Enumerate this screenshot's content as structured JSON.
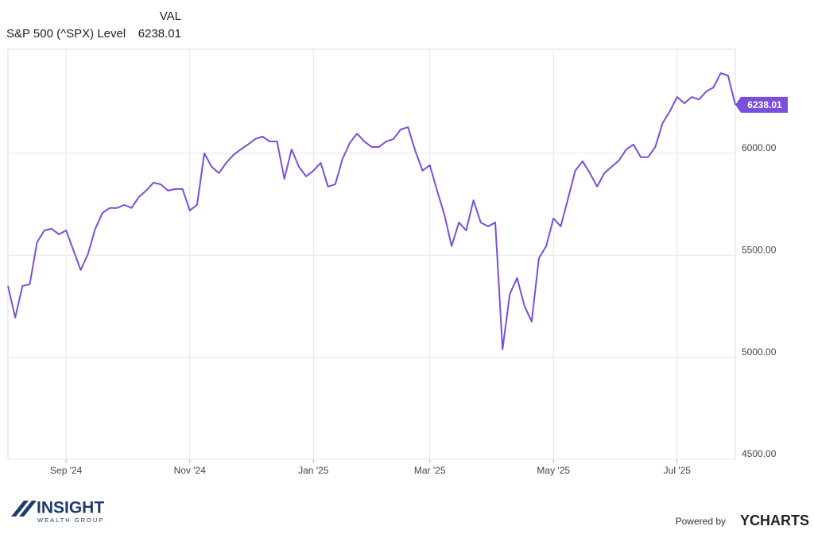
{
  "chart_data": {
    "type": "line",
    "value_header": "VAL",
    "categories": [
      null,
      null,
      null,
      null,
      null,
      null,
      null,
      null,
      "Sep '24",
      null,
      null,
      null,
      null,
      null,
      null,
      null,
      null,
      null,
      null,
      null,
      null,
      null,
      null,
      null,
      null,
      "Nov '24",
      null,
      null,
      null,
      null,
      null,
      null,
      null,
      null,
      null,
      null,
      null,
      null,
      null,
      null,
      null,
      null,
      "Jan '25",
      null,
      null,
      null,
      null,
      null,
      null,
      null,
      null,
      null,
      null,
      null,
      null,
      null,
      null,
      null,
      "Mar '25",
      null,
      null,
      null,
      null,
      null,
      null,
      null,
      null,
      null,
      null,
      null,
      null,
      null,
      null,
      null,
      null,
      "May '25",
      null,
      null,
      null,
      null,
      null,
      null,
      null,
      null,
      null,
      null,
      null,
      null,
      null,
      null,
      null,
      null,
      "Jul '25",
      null,
      null,
      null,
      null,
      null,
      null,
      null,
      null
    ],
    "series": [
      {
        "name": "S&P 500 (^SPX) Level",
        "color": "#7a4fdc",
        "values": [
          5350,
          5195,
          5350,
          5358,
          5564,
          5622,
          5630,
          5603,
          5622,
          5525,
          5428,
          5506,
          5630,
          5708,
          5732,
          5732,
          5747,
          5732,
          5786,
          5817,
          5856,
          5848,
          5817,
          5825,
          5825,
          5720,
          5747,
          6000,
          5934,
          5903,
          5953,
          5992,
          6019,
          6043,
          6070,
          6082,
          6058,
          6058,
          5875,
          6019,
          5934,
          5887,
          5915,
          5953,
          5837,
          5848,
          5973,
          6051,
          6097,
          6058,
          6031,
          6031,
          6058,
          6070,
          6117,
          6128,
          6012,
          5915,
          5942,
          5817,
          5700,
          5545,
          5661,
          5622,
          5770,
          5661,
          5642,
          5661,
          5039,
          5311,
          5389,
          5253,
          5175,
          5486,
          5545,
          5681,
          5642,
          5778,
          5915,
          5961,
          5903,
          5837,
          5903,
          5934,
          5965,
          6019,
          6043,
          5981,
          5981,
          6031,
          6148,
          6206,
          6276,
          6245,
          6276,
          6264,
          6303,
          6323,
          6393,
          6381,
          6238.01
        ]
      }
    ],
    "ylim": [
      4500,
      6510
    ],
    "yticks": [
      {
        "value": 4500,
        "label": "4500.00"
      },
      {
        "value": 5000,
        "label": "5000.00"
      },
      {
        "value": 5500,
        "label": "5500.00"
      },
      {
        "value": 6000,
        "label": "6000.00"
      }
    ],
    "grid": true
  },
  "branding": {
    "logo": "INSIGHT",
    "logo_sub": "WEALTH GROUP",
    "powered": "Powered by",
    "provider": "YCHARTS"
  }
}
